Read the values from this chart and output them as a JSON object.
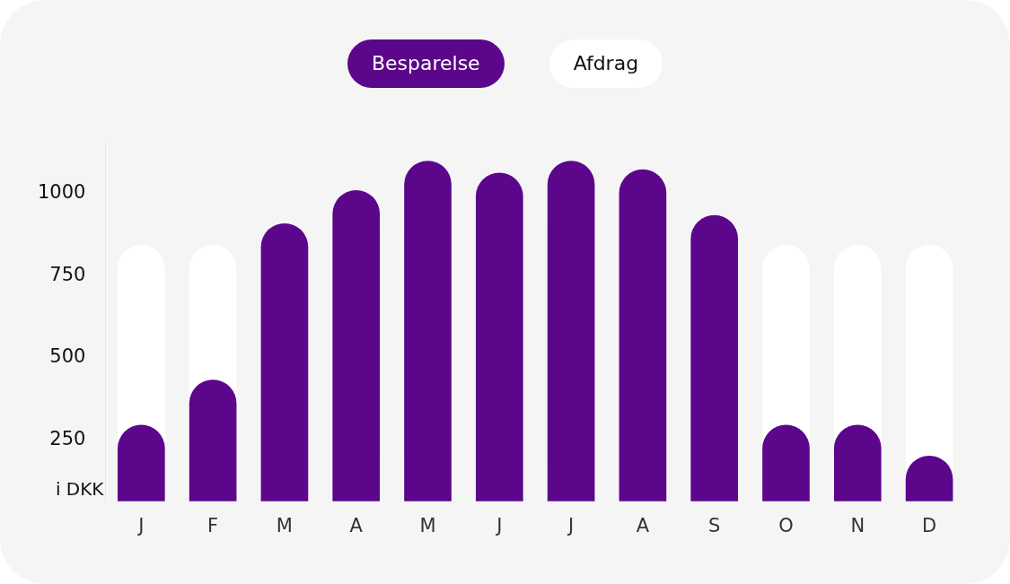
{
  "chart_data": {
    "type": "bar",
    "ylabel": "i DKK",
    "categories": [
      "J",
      "F",
      "M",
      "A",
      "M",
      "J",
      "J",
      "A",
      "S",
      "O",
      "N",
      "D"
    ],
    "series": [
      {
        "name": "Besparelse",
        "color": "#5c068c",
        "values": [
          296,
          433,
          909,
          1010,
          1099,
          1063,
          1099,
          1073,
          934,
          296,
          296,
          202
        ]
      },
      {
        "name": "Afdrag",
        "color": "#ffffff",
        "values": [
          843,
          843,
          null,
          null,
          null,
          null,
          null,
          null,
          null,
          843,
          843,
          843
        ]
      }
    ],
    "ylim": [
      63,
      1150
    ],
    "yticks": [
      250,
      500,
      750,
      1000
    ],
    "grid": false,
    "legend": "top"
  }
}
